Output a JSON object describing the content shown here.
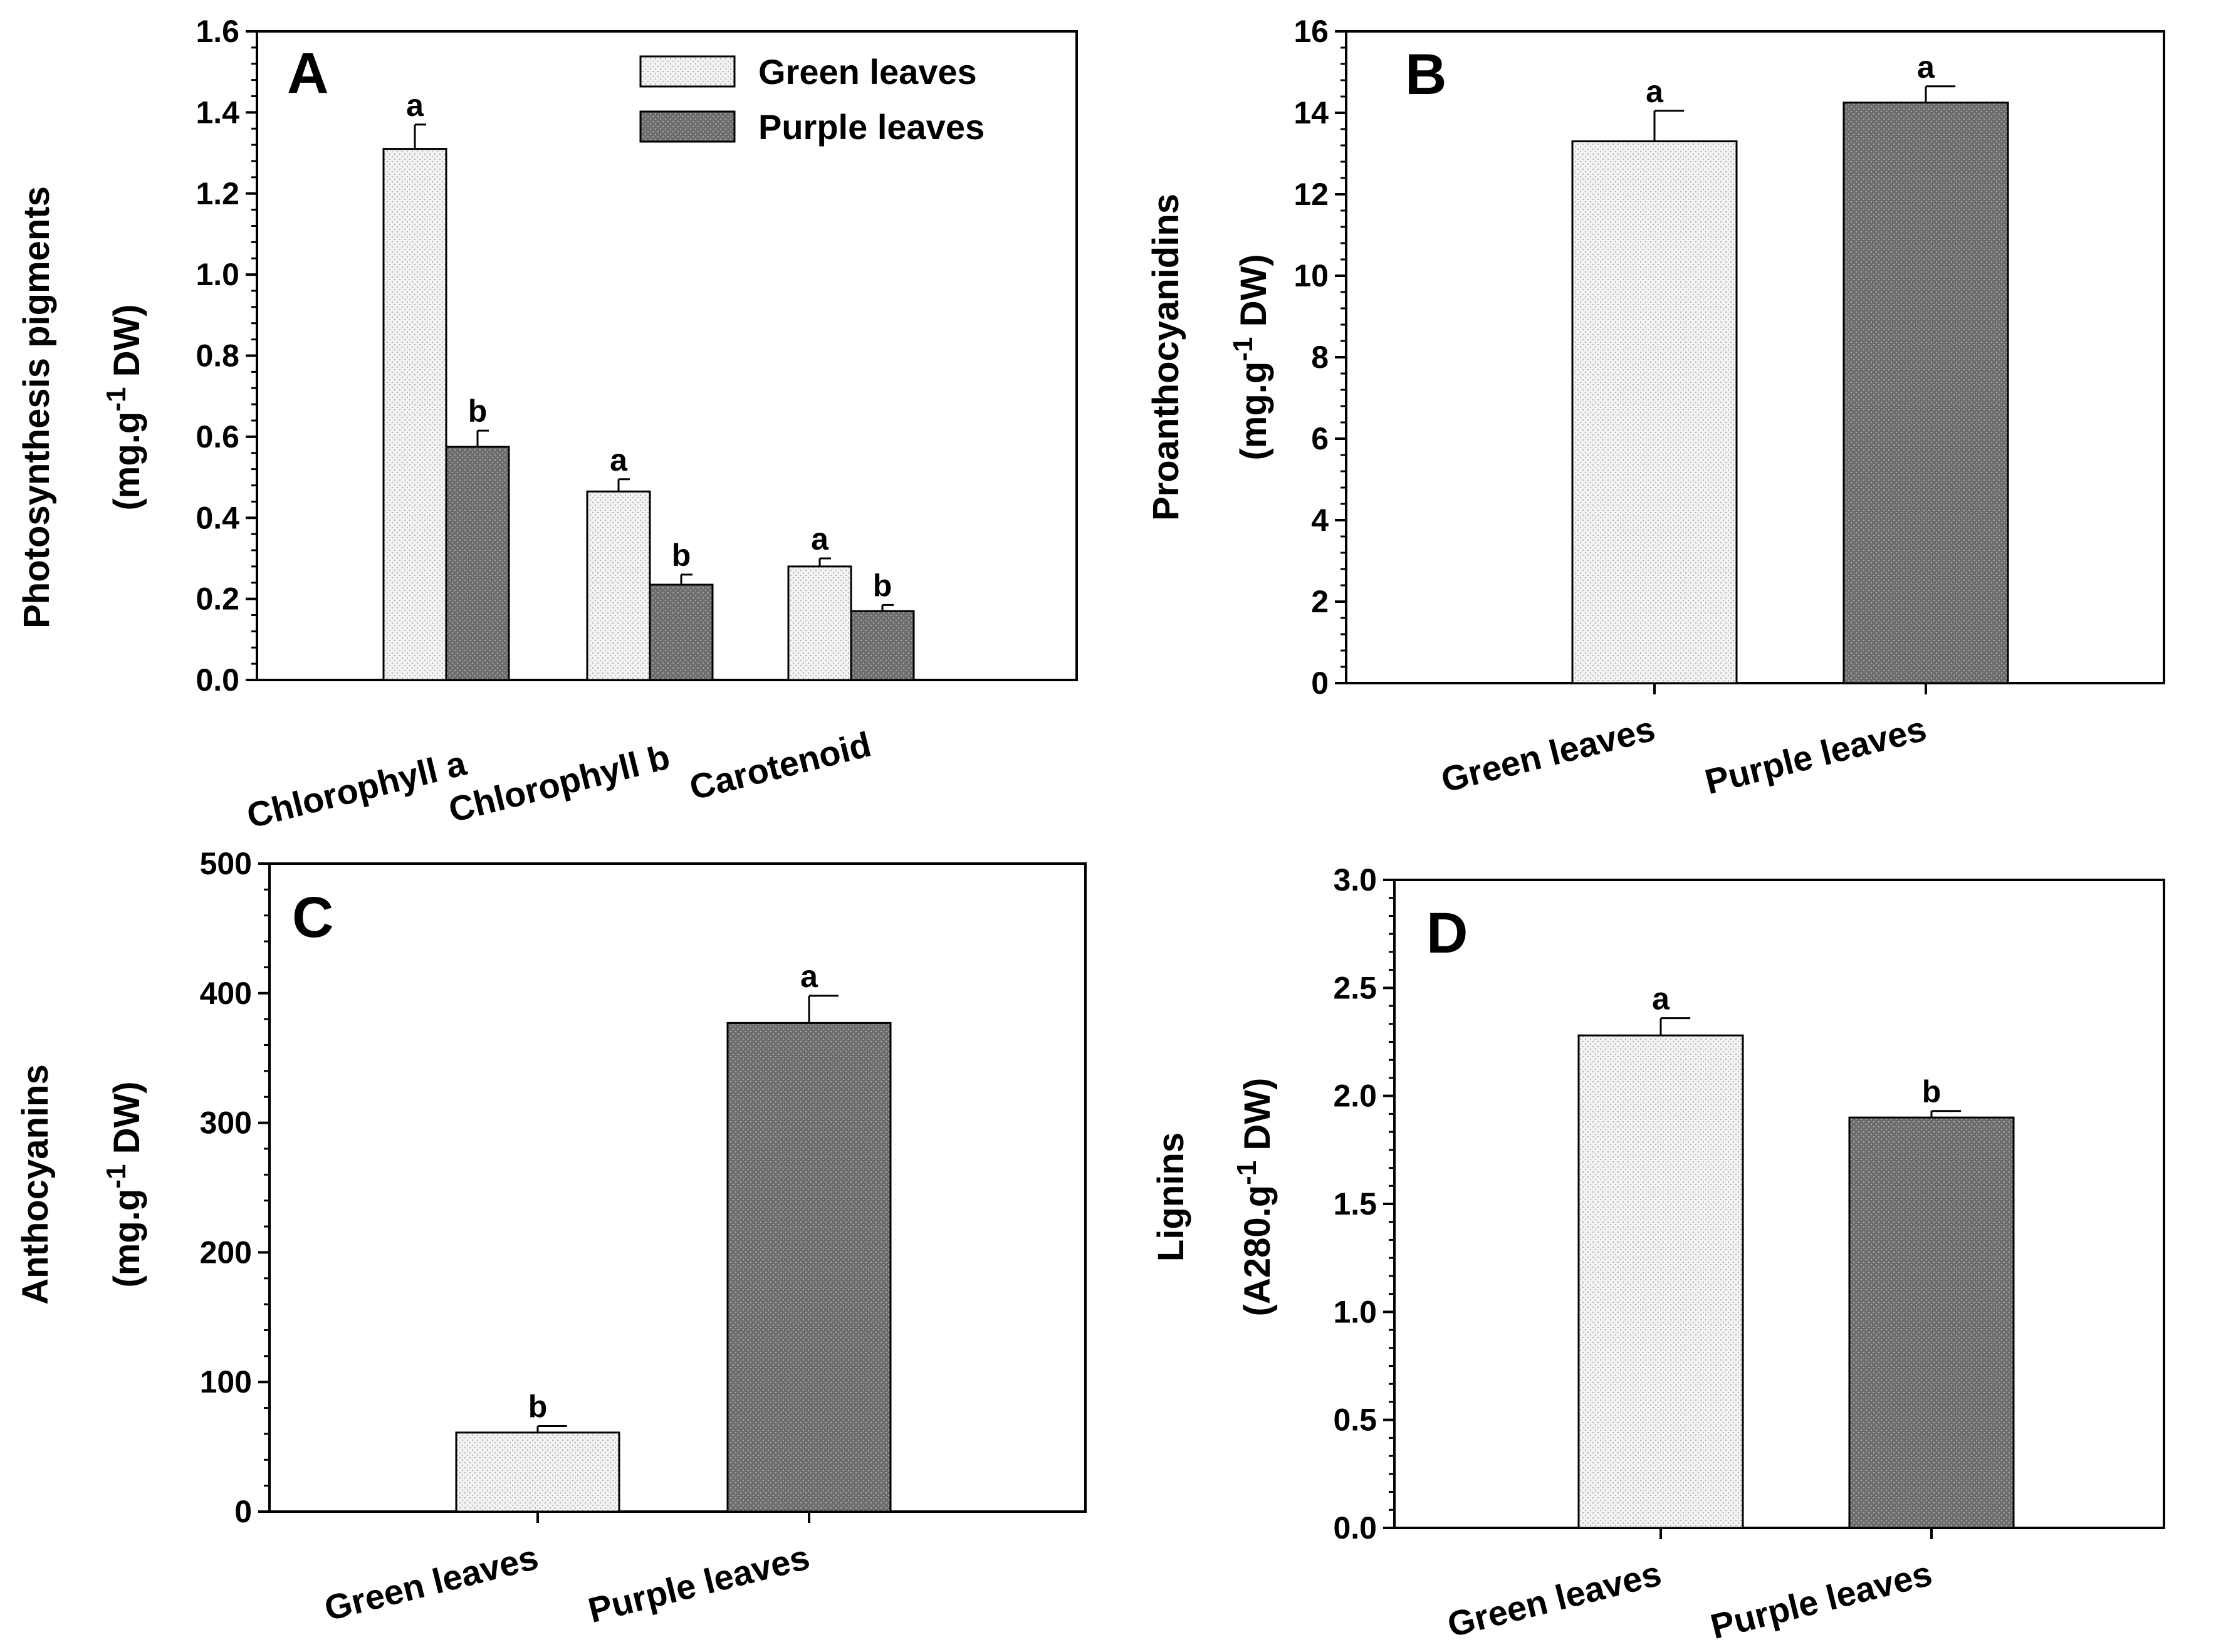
{
  "chart_data": [
    {
      "id": "A",
      "type": "bar",
      "panel_label": "A",
      "ylabel_line1": "Photosynthesis pigments",
      "ylabel_line2_prefix": "(mg.g",
      "ylabel_line2_sup": "-1",
      "ylabel_line2_suffix": " DW)",
      "ylim": [
        0,
        1.6
      ],
      "yticks": [
        "0.0",
        "0.2",
        "0.4",
        "0.6",
        "0.8",
        "1.0",
        "1.2",
        "1.4",
        "1.6"
      ],
      "categories": [
        "Chlorophyll a",
        "Chlorophyll b",
        "Carotenoid"
      ],
      "series": [
        {
          "name": "Green leaves",
          "values": [
            1.31,
            0.465,
            0.28
          ],
          "errors": [
            0.06,
            0.03,
            0.02
          ],
          "sig": [
            "a",
            "a",
            "a"
          ]
        },
        {
          "name": "Purple leaves",
          "values": [
            0.575,
            0.235,
            0.17
          ],
          "errors": [
            0.04,
            0.025,
            0.015
          ],
          "sig": [
            "b",
            "b",
            "b"
          ]
        }
      ],
      "legend": [
        "Green leaves",
        "Purple leaves"
      ],
      "legend_position": "top-right"
    },
    {
      "id": "B",
      "type": "bar",
      "panel_label": "B",
      "ylabel_line1": "Proanthocyanidins",
      "ylabel_line2_prefix": "(mg.g",
      "ylabel_line2_sup": "-1",
      "ylabel_line2_suffix": " DW)",
      "ylim": [
        0,
        16
      ],
      "yticks": [
        "0",
        "2",
        "4",
        "6",
        "8",
        "10",
        "12",
        "14",
        "16"
      ],
      "categories": [
        "Green leaves",
        "Purple leaves"
      ],
      "values": [
        13.3,
        14.25
      ],
      "errors": [
        0.75,
        0.4
      ],
      "sig": [
        "a",
        "a"
      ]
    },
    {
      "id": "C",
      "type": "bar",
      "panel_label": "C",
      "ylabel_line1": "Anthocyanins",
      "ylabel_line2_prefix": "(mg.g",
      "ylabel_line2_sup": "-1",
      "ylabel_line2_suffix": " DW)",
      "ylim": [
        0,
        500
      ],
      "yticks": [
        "0",
        "100",
        "200",
        "300",
        "400",
        "500"
      ],
      "categories": [
        "Green leaves",
        "Purple leaves"
      ],
      "values": [
        61,
        377
      ],
      "errors": [
        5,
        21
      ],
      "sig": [
        "b",
        "a"
      ]
    },
    {
      "id": "D",
      "type": "bar",
      "panel_label": "D",
      "ylabel_line1": "Lignins",
      "ylabel_line2_prefix": "(A280.g",
      "ylabel_line2_sup": "-1",
      "ylabel_line2_suffix": " DW)",
      "ylim": [
        0,
        3.0
      ],
      "yticks": [
        "0.0",
        "0.5",
        "1.0",
        "1.5",
        "2.0",
        "2.5",
        "3.0"
      ],
      "categories": [
        "Green leaves",
        "Purple leaves"
      ],
      "values": [
        2.28,
        1.9
      ],
      "errors": [
        0.08,
        0.03
      ],
      "sig": [
        "a",
        "b"
      ]
    }
  ],
  "colors": {
    "green_fill": "#eeeeee",
    "purple_fill": "#7a7a7a",
    "axis": "#000000"
  }
}
